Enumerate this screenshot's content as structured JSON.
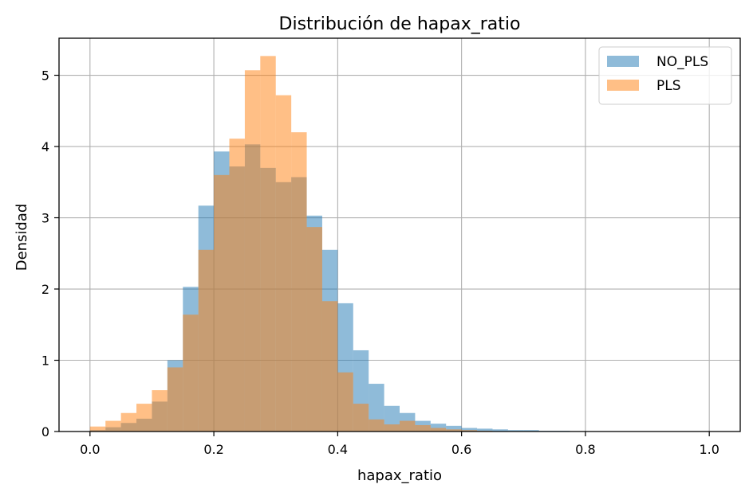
{
  "chart_data": {
    "type": "bar",
    "title": "Distribución de hapax_ratio",
    "xlabel": "hapax_ratio",
    "ylabel": "Densidad",
    "xlim": [
      -0.05,
      1.05
    ],
    "ylim": [
      0,
      5.52
    ],
    "xticks": [
      0.0,
      0.2,
      0.4,
      0.6,
      0.8,
      1.0
    ],
    "xtick_labels": [
      "0.0",
      "0.2",
      "0.4",
      "0.6",
      "0.8",
      "1.0"
    ],
    "yticks": [
      0,
      1,
      2,
      3,
      4,
      5
    ],
    "ytick_labels": [
      "0",
      "1",
      "2",
      "3",
      "4",
      "5"
    ],
    "grid": true,
    "legend_position": "top-right",
    "bin_edges_start": 0.0,
    "bin_width": 0.025,
    "series": [
      {
        "name": "NO_PLS",
        "color": "#1f77b4",
        "alpha": 0.5,
        "values": [
          0.02,
          0.06,
          0.12,
          0.18,
          0.42,
          1.0,
          2.03,
          3.17,
          3.93,
          3.72,
          4.03,
          3.7,
          3.5,
          3.57,
          3.03,
          2.55,
          1.8,
          1.14,
          0.67,
          0.36,
          0.26,
          0.15,
          0.11,
          0.08,
          0.05,
          0.04,
          0.03,
          0.02,
          0.02,
          0.01,
          0.01,
          0.005,
          0.003,
          0.002,
          0.002,
          0.001,
          0.001,
          0.0,
          0.0,
          0.0
        ]
      },
      {
        "name": "PLS",
        "color": "#ff7f0e",
        "alpha": 0.5,
        "values": [
          0.07,
          0.15,
          0.26,
          0.39,
          0.58,
          0.9,
          1.64,
          2.55,
          3.6,
          4.11,
          5.07,
          5.27,
          4.72,
          4.2,
          2.87,
          1.83,
          0.83,
          0.39,
          0.17,
          0.1,
          0.15,
          0.09,
          0.05,
          0.03,
          0.02,
          0.01,
          0.005,
          0.003,
          0.0,
          0.0,
          0.0,
          0.0,
          0.0,
          0.0,
          0.0,
          0.0,
          0.0,
          0.0,
          0.0,
          0.0
        ]
      }
    ]
  }
}
